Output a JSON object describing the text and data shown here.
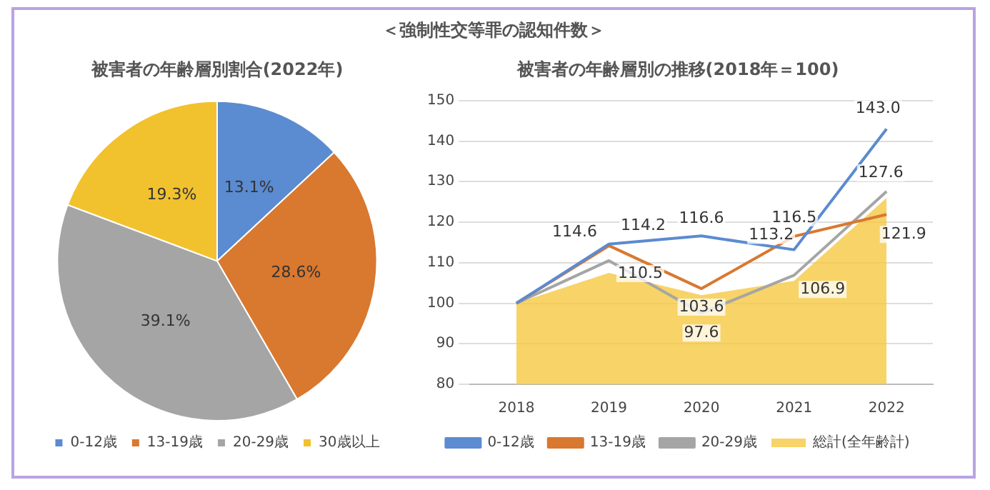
{
  "chart_data": [
    {
      "type": "pie",
      "title": "被害者の年齢層別割合(2022年)",
      "annotations": [
        "＜強制性交等罪の認知件数＞"
      ],
      "categories": [
        "0-12歳",
        "13-19歳",
        "20-29歳",
        "30歳以上"
      ],
      "values": [
        13.1,
        28.6,
        39.1,
        19.3
      ],
      "colors": [
        "#5b8bd0",
        "#d9782f",
        "#a5a5a5",
        "#f2c12e"
      ],
      "value_labels": [
        "13.1%",
        "28.6%",
        "39.1%",
        "19.3%"
      ],
      "legend": "bottom"
    },
    {
      "type": "line",
      "title": "被害者の年齢層別の推移(2018年＝100)",
      "categories": [
        "2018",
        "2019",
        "2020",
        "2021",
        "2022"
      ],
      "ylim": [
        80,
        150
      ],
      "yticks": [
        80,
        90,
        100,
        110,
        120,
        130,
        140,
        150
      ],
      "grid": "y",
      "legend": "bottom",
      "marker": "none",
      "series": [
        {
          "name": "総計(全年齢計)",
          "type": "area",
          "color": "#f5c842",
          "values": [
            100,
            107.5,
            102,
            105.5,
            126
          ]
        },
        {
          "name": "0-12歳",
          "color": "#5b8bd0",
          "values": [
            100,
            114.6,
            116.6,
            113.2,
            143.0
          ],
          "value_labels": [
            null,
            "114.6",
            "116.6",
            "113.2",
            "143.0"
          ]
        },
        {
          "name": "13-19歳",
          "color": "#d9782f",
          "values": [
            100,
            114.2,
            103.6,
            116.5,
            121.9
          ],
          "value_labels": [
            null,
            "114.2",
            "103.6",
            "116.5",
            "121.9"
          ]
        },
        {
          "name": "20-29歳",
          "color": "#a5a5a5",
          "values": [
            100,
            110.5,
            97.6,
            106.9,
            127.6
          ],
          "value_labels": [
            null,
            "110.5",
            "97.6",
            "106.9",
            "127.6"
          ]
        }
      ]
    }
  ]
}
